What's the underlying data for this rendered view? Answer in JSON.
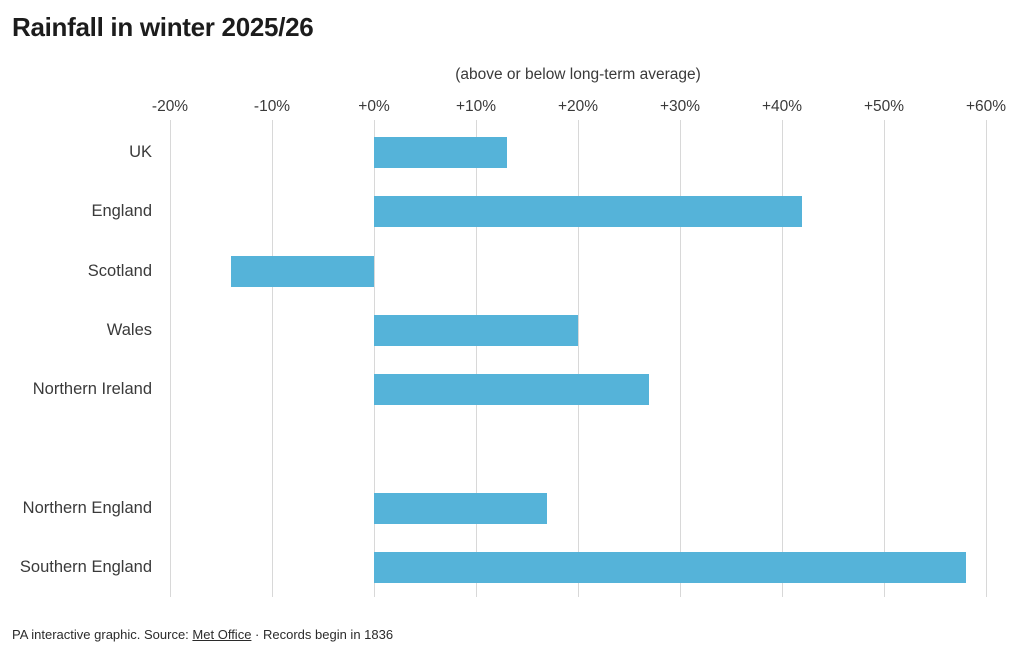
{
  "title": "Rainfall in winter 2025/26",
  "subtitle": "(above or below long-term average)",
  "footer": {
    "prefix": "PA interactive graphic. Source: ",
    "link": "Met Office",
    "suffix": " · Records begin in 1836"
  },
  "colors": {
    "bar": "#55b3d9",
    "gridline": "#d8d8d8",
    "title_text": "#1c1c1c",
    "axis_text": "#3a3a3a"
  },
  "chart_data": {
    "type": "bar",
    "orientation": "horizontal",
    "title": "Rainfall in winter 2025/26",
    "subtitle": "(above or below long-term average)",
    "unit": "%",
    "xlim": [
      -20,
      60
    ],
    "x_ticks": [
      -20,
      -10,
      0,
      10,
      20,
      30,
      40,
      50,
      60
    ],
    "x_tick_labels": [
      "-20%",
      "-10%",
      "+0%",
      "+10%",
      "+20%",
      "+30%",
      "+40%",
      "+50%",
      "+60%"
    ],
    "grid": true,
    "legend": false,
    "groups": [
      {
        "name": "nations",
        "rows": [
          {
            "label": "UK",
            "value": 13
          },
          {
            "label": "England",
            "value": 42
          },
          {
            "label": "Scotland",
            "value": -14
          },
          {
            "label": "Wales",
            "value": 20
          },
          {
            "label": "Northern Ireland",
            "value": 27
          }
        ]
      },
      {
        "name": "england-regions",
        "rows": [
          {
            "label": "Northern England",
            "value": 17
          },
          {
            "label": "Southern England",
            "value": 58
          }
        ]
      }
    ]
  }
}
